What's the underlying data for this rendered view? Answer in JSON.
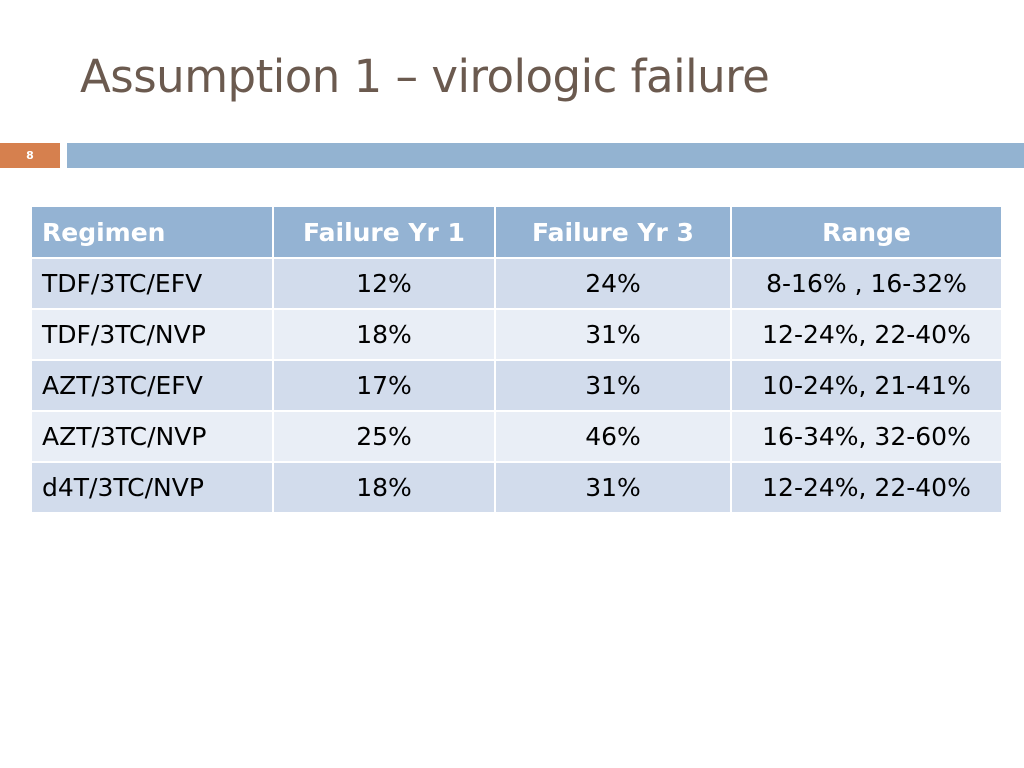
{
  "slide": {
    "title": "Assumption 1 – virologic failure",
    "slide_number": "8",
    "colors": {
      "title": "#6b5a4f",
      "number_box": "#d6804e",
      "accent_bar": "#93b3d1",
      "table_header": "#94b3d3",
      "row_dark": "#d2dcec",
      "row_light": "#e9eef6"
    }
  },
  "table": {
    "headers": [
      "Regimen",
      "Failure Yr 1",
      "Failure Yr 3",
      "Range"
    ],
    "rows": [
      [
        "TDF/3TC/EFV",
        "12%",
        "24%",
        "8-16% , 16-32%"
      ],
      [
        "TDF/3TC/NVP",
        "18%",
        "31%",
        "12-24%, 22-40%"
      ],
      [
        "AZT/3TC/EFV",
        "17%",
        "31%",
        "10-24%, 21-41%"
      ],
      [
        "AZT/3TC/NVP",
        "25%",
        "46%",
        "16-34%, 32-60%"
      ],
      [
        "d4T/3TC/NVP",
        "18%",
        "31%",
        "12-24%, 22-40%"
      ]
    ]
  }
}
